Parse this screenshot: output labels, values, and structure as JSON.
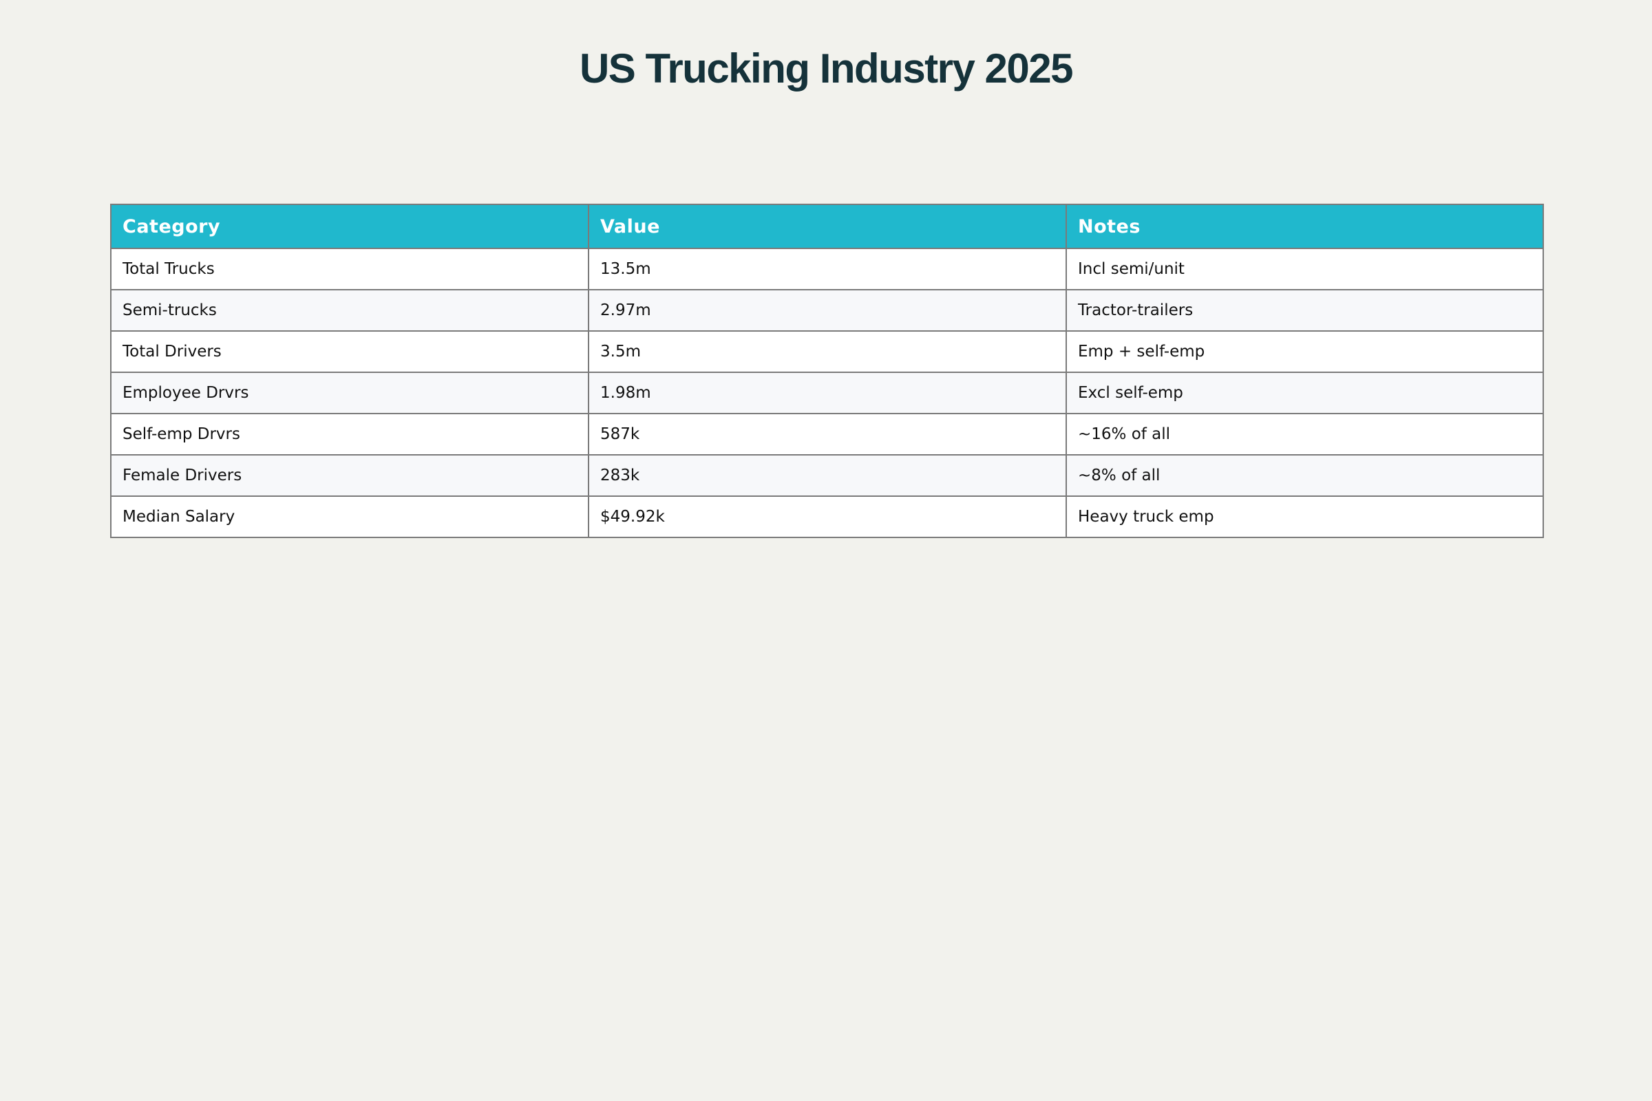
{
  "chart_data": {
    "type": "table",
    "title": "US Trucking Industry 2025",
    "columns": [
      "Category",
      "Value",
      "Notes"
    ],
    "rows": [
      [
        "Total Trucks",
        "13.5m",
        "Incl semi/unit"
      ],
      [
        "Semi-trucks",
        "2.97m",
        "Tractor-trailers"
      ],
      [
        "Total Drivers",
        "3.5m",
        "Emp + self-emp"
      ],
      [
        "Employee Drvrs",
        "1.98m",
        "Excl self-emp"
      ],
      [
        "Self-emp Drvrs",
        "587k",
        "~16% of all"
      ],
      [
        "Female Drivers",
        "283k",
        "~8% of all"
      ],
      [
        "Median Salary",
        "$49.92k",
        "Heavy truck emp"
      ]
    ]
  },
  "colors": {
    "background": "#f2f2ed",
    "title": "#15323a",
    "header_bg": "#20b8cd",
    "header_text": "#ffffff",
    "row_odd": "#ffffff",
    "row_even": "#f7f8fa",
    "border": "#7a7a7a"
  }
}
